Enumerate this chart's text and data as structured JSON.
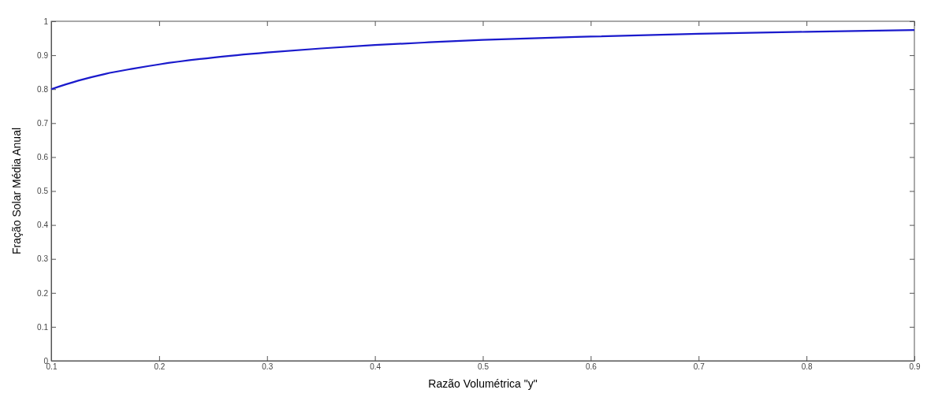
{
  "chart_data": {
    "type": "line",
    "xlabel": "Razão Volumétrica \"y\"",
    "ylabel": "Fração Solar Média Anual",
    "x": [
      0.1,
      0.125,
      0.15,
      0.175,
      0.2,
      0.25,
      0.3,
      0.35,
      0.4,
      0.45,
      0.5,
      0.6,
      0.7,
      0.8,
      0.9
    ],
    "series": [
      {
        "color": "#1a1acc",
        "values": [
          0.8,
          0.825,
          0.845,
          0.86,
          0.873,
          0.893,
          0.908,
          0.92,
          0.93,
          0.938,
          0.945,
          0.955,
          0.963,
          0.969,
          0.974
        ]
      }
    ],
    "xlim": [
      0.1,
      0.9
    ],
    "ylim": [
      0,
      1
    ],
    "xticks": [
      0.1,
      0.2,
      0.3,
      0.4,
      0.5,
      0.6,
      0.7,
      0.8,
      0.9
    ],
    "yticks": [
      0,
      0.1,
      0.2,
      0.3,
      0.4,
      0.5,
      0.6,
      0.7,
      0.8,
      0.9,
      1
    ],
    "marker": "none",
    "line_style": "solid"
  }
}
